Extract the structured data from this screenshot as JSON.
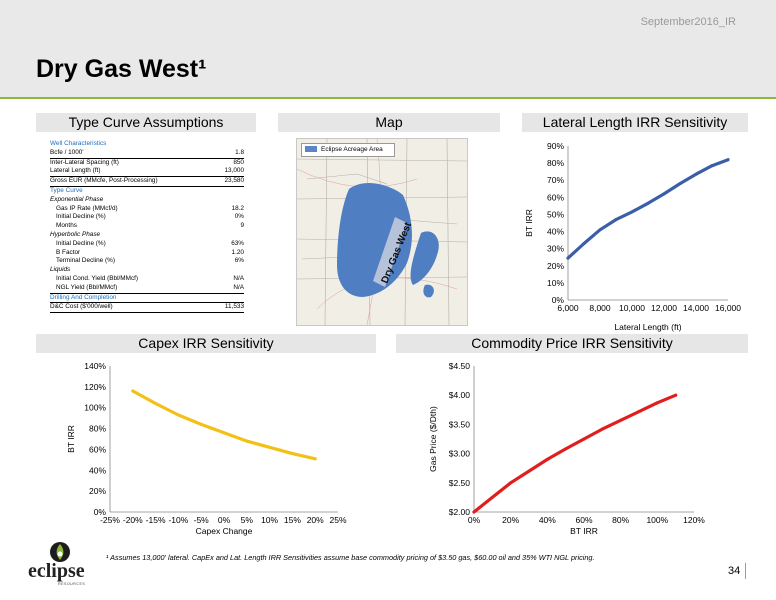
{
  "header": {
    "date_label": "September2016_IR",
    "title": "Dry Gas West¹"
  },
  "sections": {
    "type_curve": "Type Curve Assumptions",
    "map": "Map",
    "lateral": "Lateral Length IRR Sensitivity",
    "capex": "Capex IRR Sensitivity",
    "commodity": "Commodity Price IRR Sensitivity"
  },
  "assumptions": {
    "rows": [
      {
        "label": "Well Characteristics",
        "value": "",
        "style": "blue-head"
      },
      {
        "label": "Bcfe / 1000'",
        "value": "1.8",
        "style": "ul"
      },
      {
        "label": "Inter-Lateral Spacing (ft)",
        "value": "850",
        "style": ""
      },
      {
        "label": "Lateral Length (ft)",
        "value": "13,000",
        "style": "ul"
      },
      {
        "label": "Gross EUR (MMcfe, Post-Processing)",
        "value": "23,580",
        "style": ""
      },
      {
        "label": "Type Curve",
        "value": "",
        "style": "blue-head ulT"
      },
      {
        "label": "Exponential Phase",
        "value": "",
        "style": "it"
      },
      {
        "label": "Gas IP Rate (MMcf/d)",
        "value": "18.2",
        "style": "ind"
      },
      {
        "label": "Initial Decline (%)",
        "value": "0%",
        "style": "ind"
      },
      {
        "label": "Months",
        "value": "9",
        "style": "ind"
      },
      {
        "label": "Hyperbolic Phase",
        "value": "",
        "style": "it"
      },
      {
        "label": "Initial Decline (%)",
        "value": "63%",
        "style": "ind"
      },
      {
        "label": "B Factor",
        "value": "1.20",
        "style": "ind"
      },
      {
        "label": "Terminal Decline (%)",
        "value": "6%",
        "style": "ind"
      },
      {
        "label": "Liquids",
        "value": "",
        "style": "it"
      },
      {
        "label": "Initial Cond. Yield (Bbl/MMcf)",
        "value": "N/A",
        "style": "ind"
      },
      {
        "label": "NGL Yield (Bbl/MMcf)",
        "value": "N/A",
        "style": "ind ul"
      },
      {
        "label": "Drilling And Completion",
        "value": "",
        "style": "blue-head"
      },
      {
        "label": "D&C Cost ($'000/well)",
        "value": "11,533",
        "style": "ulT ul"
      }
    ]
  },
  "map": {
    "legend_label": "Eclipse Acreage Area",
    "overlay_label": "Dry Gas West",
    "legend_color": "#5a86c6",
    "acreage_color": "#4f7fc2"
  },
  "footnote": "¹ Assumes 13,000' lateral. CapEx and Lat. Length IRR Sensitivities assume base commodity pricing of $3.50 gas, $60.00 oil and 35% WTI NGL pricing.",
  "page_number": "34",
  "logo": {
    "name": "eclipse",
    "sub": "RESOURCES"
  },
  "chart_data": [
    {
      "id": "lateral",
      "type": "line",
      "title": "Lateral Length IRR Sensitivity",
      "xlabel": "Lateral Length (ft)",
      "ylabel": "BT IRR",
      "xlim": [
        6000,
        16000
      ],
      "ylim": [
        0,
        0.9
      ],
      "x_ticks": [
        6000,
        8000,
        10000,
        12000,
        14000,
        16000
      ],
      "x_tick_labels": [
        "6,000",
        "8,000",
        "10,000",
        "12,000",
        "14,000",
        "16,000"
      ],
      "y_ticks": [
        0,
        0.1,
        0.2,
        0.3,
        0.4,
        0.5,
        0.6,
        0.7,
        0.8,
        0.9
      ],
      "y_tick_labels": [
        "0%",
        "10%",
        "20%",
        "30%",
        "40%",
        "50%",
        "60%",
        "70%",
        "80%",
        "90%"
      ],
      "series": [
        {
          "color": "#3a5fa8",
          "x": [
            6000,
            7000,
            8000,
            9000,
            10000,
            11000,
            12000,
            13000,
            14000,
            15000,
            16000
          ],
          "y": [
            0.245,
            0.33,
            0.41,
            0.47,
            0.515,
            0.565,
            0.62,
            0.68,
            0.735,
            0.785,
            0.82
          ]
        }
      ]
    },
    {
      "id": "capex",
      "type": "line",
      "title": "Capex IRR Sensitivity",
      "xlabel": "Capex Change",
      "ylabel": "BT IRR",
      "xlim": [
        -0.25,
        0.25
      ],
      "ylim": [
        0,
        1.4
      ],
      "x_ticks": [
        -0.25,
        -0.2,
        -0.15,
        -0.1,
        -0.05,
        0,
        0.05,
        0.1,
        0.15,
        0.2,
        0.25
      ],
      "x_tick_labels": [
        "-25%",
        "-20%",
        "-15%",
        "-10%",
        "-5%",
        "0%",
        "5%",
        "10%",
        "15%",
        "20%",
        "25%"
      ],
      "y_ticks": [
        0,
        0.2,
        0.4,
        0.6,
        0.8,
        1.0,
        1.2,
        1.4
      ],
      "y_tick_labels": [
        "0%",
        "20%",
        "40%",
        "60%",
        "80%",
        "100%",
        "120%",
        "140%"
      ],
      "series": [
        {
          "color": "#f2c016",
          "x": [
            -0.2,
            -0.15,
            -0.1,
            -0.05,
            0,
            0.05,
            0.1,
            0.15,
            0.2
          ],
          "y": [
            1.16,
            1.04,
            0.93,
            0.84,
            0.76,
            0.68,
            0.62,
            0.56,
            0.51
          ]
        }
      ]
    },
    {
      "id": "commodity",
      "type": "line",
      "title": "Commodity Price IRR Sensitivity",
      "xlabel": "BT IRR",
      "ylabel": "Gas Price ($/Dth)",
      "xlim": [
        0,
        1.2
      ],
      "ylim": [
        2.0,
        4.5
      ],
      "x_ticks": [
        0,
        0.2,
        0.4,
        0.6,
        0.8,
        1.0,
        1.2
      ],
      "x_tick_labels": [
        "0%",
        "20%",
        "40%",
        "60%",
        "80%",
        "100%",
        "120%"
      ],
      "y_ticks": [
        2.0,
        2.5,
        3.0,
        3.5,
        4.0,
        4.5
      ],
      "y_tick_labels": [
        "$2.00",
        "$2.50",
        "$3.00",
        "$3.50",
        "$4.00",
        "$4.50"
      ],
      "series": [
        {
          "color": "#e01e1e",
          "x": [
            0,
            0.1,
            0.2,
            0.3,
            0.4,
            0.5,
            0.6,
            0.7,
            0.8,
            0.9,
            1.0,
            1.1
          ],
          "y": [
            2.0,
            2.25,
            2.5,
            2.7,
            2.9,
            3.08,
            3.25,
            3.42,
            3.57,
            3.72,
            3.87,
            4.0
          ]
        }
      ]
    }
  ]
}
